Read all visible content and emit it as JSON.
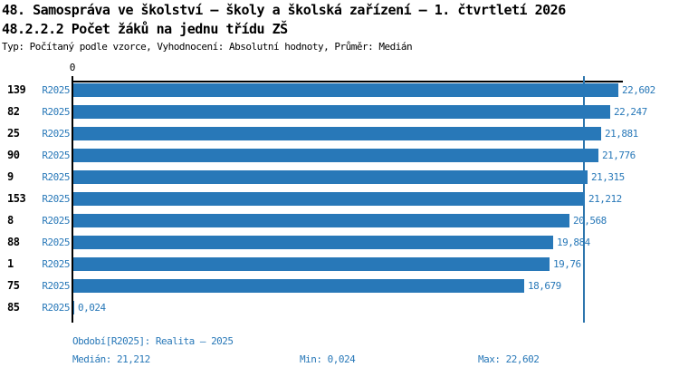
{
  "header": {
    "title_line1": "48. Samospráva ve školství – školy a školská zařízení – 1. čtvrtletí 2026",
    "title_line2": "48.2.2.2 Počet žáků na jednu třídu ZŠ",
    "meta_line": "Typ: Počítaný podle vzorce, Vyhodnocení: Absolutní hodnoty, Průměr: Medián"
  },
  "colors": {
    "bar": "#2878b8",
    "value_text": "#2878b8",
    "axis": "#000000",
    "median_line": "#2e76ad"
  },
  "chart_data": {
    "type": "bar",
    "orientation": "horizontal",
    "title": "48.2.2.2 Počet žáků na jednu třídu ZŠ",
    "series_name": "R2025",
    "axis_tick_labels": [
      "0"
    ],
    "xlim": [
      0,
      22.602
    ],
    "grid": false,
    "median_marker": 21.212,
    "categories": [
      "139",
      "82",
      "25",
      "90",
      "9",
      "153",
      "8",
      "88",
      "1",
      "75",
      "85"
    ],
    "period_label": "R2025",
    "values": [
      22.602,
      22.247,
      21.881,
      21.776,
      21.315,
      21.212,
      20.568,
      19.884,
      19.76,
      18.679,
      0.024
    ],
    "value_labels": [
      "22,602",
      "22,247",
      "21,881",
      "21,776",
      "21,315",
      "21,212",
      "20,568",
      "19,884",
      "19,76",
      "18,679",
      "0,024"
    ]
  },
  "footer": {
    "period_line": "Období[R2025]: Realita – 2025",
    "median_stat": "Medián: 21,212",
    "min_stat": "Min: 0,024",
    "max_stat": "Max: 22,602"
  }
}
